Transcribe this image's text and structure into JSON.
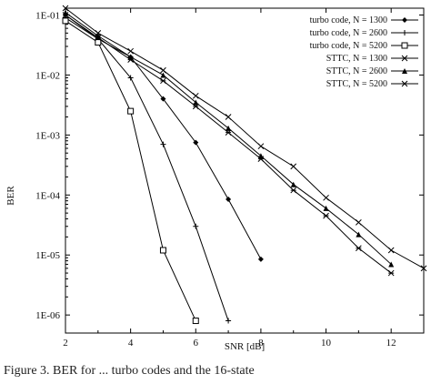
{
  "caption": "Figure 3. BER for ...  turbo codes and the 16-state",
  "chart_data": {
    "type": "line",
    "title": "",
    "xlabel": "SNR [dB]",
    "ylabel": "BER",
    "xlim": [
      2,
      13
    ],
    "ylim": [
      5e-07,
      0.13
    ],
    "yscale": "log",
    "grid": false,
    "legend_position": "top-right",
    "x_ticks": [
      2,
      4,
      6,
      8,
      10,
      12
    ],
    "x_tick_labels": [
      "2",
      "4",
      "6",
      "8",
      "10",
      "12"
    ],
    "y_ticks": [
      1e-06,
      1e-05,
      0.0001,
      0.001,
      0.01,
      0.1
    ],
    "y_tick_labels": [
      "1E-06",
      "1E-05",
      "1E-04",
      "1E-03",
      "1E-02",
      "1E-01"
    ],
    "series": [
      {
        "name": "turbo code, N = 1300",
        "marker": "diamond",
        "x": [
          2,
          3,
          4,
          5,
          6,
          7,
          8
        ],
        "y": [
          0.1,
          0.04,
          0.02,
          0.004,
          0.00075,
          8.5e-05,
          8.5e-06
        ]
      },
      {
        "name": "turbo code, N = 2600",
        "marker": "plus",
        "x": [
          2,
          3,
          4,
          5,
          6,
          7
        ],
        "y": [
          0.09,
          0.04,
          0.009,
          0.0007,
          3e-05,
          8e-07
        ]
      },
      {
        "name": "turbo code, N = 5200",
        "marker": "square",
        "x": [
          2,
          3,
          4,
          5,
          6
        ],
        "y": [
          0.08,
          0.035,
          0.0025,
          1.2e-05,
          8e-07
        ]
      },
      {
        "name": "STTC, N = 1300",
        "marker": "x",
        "x": [
          2,
          3,
          4,
          5,
          6,
          7,
          8,
          9,
          10,
          11,
          12,
          13
        ],
        "y": [
          0.13,
          0.05,
          0.025,
          0.012,
          0.0045,
          0.002,
          0.00065,
          0.0003,
          9e-05,
          3.5e-05,
          1.2e-05,
          6e-06
        ]
      },
      {
        "name": "STTC, N = 2600",
        "marker": "triangle",
        "x": [
          2,
          3,
          4,
          5,
          6,
          7,
          8,
          9,
          10,
          11,
          12
        ],
        "y": [
          0.11,
          0.045,
          0.02,
          0.01,
          0.0035,
          0.0013,
          0.00045,
          0.00015,
          6e-05,
          2.2e-05,
          7e-06
        ]
      },
      {
        "name": "STTC, N = 5200",
        "marker": "asterisk",
        "x": [
          2,
          3,
          4,
          5,
          6,
          7,
          8,
          9,
          10,
          11,
          12
        ],
        "y": [
          0.1,
          0.042,
          0.018,
          0.008,
          0.003,
          0.0011,
          0.0004,
          0.00012,
          4.5e-05,
          1.3e-05,
          5e-06
        ]
      }
    ]
  }
}
